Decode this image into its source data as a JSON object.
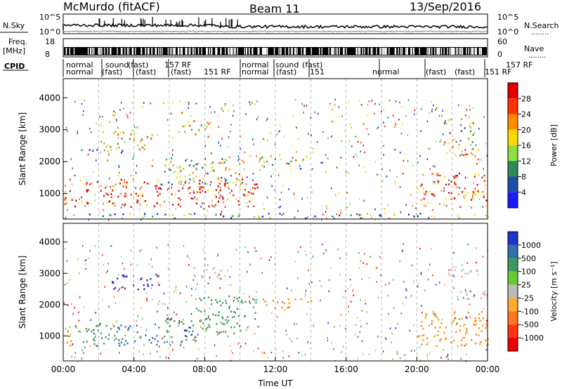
{
  "header": {
    "title": "McMurdo (fitACF)",
    "beam": "Beam 11",
    "date": "13/Sep/2016"
  },
  "params": {
    "nsky_label": "N.Sky",
    "nsearch_label": "N.Search",
    "freq_label": "Freq.",
    "freq_units": "[MHz]",
    "nave_label": "Nave",
    "cpid_label": "CPID",
    "log_top": "10^5",
    "log_bottom": "10^0",
    "freq_top": "18",
    "freq_bottom": "8",
    "nave_top": "60",
    "nave_bottom": "0",
    "dotted_marker": "........",
    "cpid_row1": [
      "normal",
      "sound",
      "(fast)",
      "157 RF",
      "normal",
      "sound",
      "(fast)",
      "157 RF"
    ],
    "cpid_row2": [
      "normal",
      "(fast)",
      "(fast)",
      "(fast)",
      "151 RF",
      "normal",
      "(fast)",
      "151",
      "normal",
      "(fast)",
      "(fast)",
      "151 RF"
    ]
  },
  "chart_data": [
    {
      "type": "heatmap",
      "name": "power",
      "ylabel": "Slant Range [km]",
      "ylim": [
        200,
        4600
      ],
      "yticks": [
        1000,
        2000,
        3000,
        4000
      ],
      "xlim": [
        0,
        24
      ],
      "colorbar": {
        "label": "Power [dB]",
        "ticks": [
          "4",
          "8",
          "12",
          "16",
          "20",
          "24",
          "28"
        ],
        "colors": [
          "#1a1aff",
          "#1f4fa8",
          "#2e8b57",
          "#8fdf3f",
          "#ffd700",
          "#ff8c00",
          "#ff3300",
          "#e00000"
        ]
      },
      "regions": [
        {
          "x": [
            0.0,
            11.0
          ],
          "y": [
            600,
            1500
          ],
          "level": 0.85
        },
        {
          "x": [
            2.2,
            5.0
          ],
          "y": [
            2400,
            3000
          ],
          "level": 0.6
        },
        {
          "x": [
            6.5,
            8.3
          ],
          "y": [
            2800,
            3300
          ],
          "level": 0.5
        },
        {
          "x": [
            5.5,
            10.5
          ],
          "y": [
            1300,
            2200
          ],
          "level": 0.45
        },
        {
          "x": [
            11.0,
            13.8
          ],
          "y": [
            1800,
            2200
          ],
          "level": 0.5
        },
        {
          "x": [
            0.5,
            4.0
          ],
          "y": [
            2300,
            2450
          ],
          "level": 0.2
        },
        {
          "x": [
            20.0,
            24.0
          ],
          "y": [
            600,
            1700
          ],
          "level": 0.8
        },
        {
          "x": [
            21.5,
            23.5
          ],
          "y": [
            2200,
            2900
          ],
          "level": 0.55
        },
        {
          "x": [
            21.5,
            23.3
          ],
          "y": [
            2900,
            3400
          ],
          "level": 0.5
        },
        {
          "x": [
            0.0,
            24.0
          ],
          "y": [
            250,
            400
          ],
          "level": 0.3
        }
      ]
    },
    {
      "type": "heatmap",
      "name": "velocity",
      "ylabel": "Slant Range [km]",
      "xlabel": "Time UT",
      "ylim": [
        200,
        4600
      ],
      "yticks": [
        1000,
        2000,
        3000,
        4000
      ],
      "xlim": [
        0,
        24
      ],
      "xticks": [
        "00:00",
        "04:00",
        "08:00",
        "12:00",
        "16:00",
        "20:00",
        "00:00"
      ],
      "colorbar": {
        "label": "Velocity [m s^-1]",
        "ticks": [
          "1000",
          "500",
          "100",
          "25",
          "-25",
          "-100",
          "-500",
          "-1000"
        ],
        "colors": [
          "#2233cc",
          "#2f6fb0",
          "#3a9a5a",
          "#66cc33",
          "#bbbbbb",
          "#ffaa33",
          "#ff7722",
          "#ff3311",
          "#ee0000"
        ]
      },
      "regions": [
        {
          "x": [
            0.0,
            0.6
          ],
          "y": [
            700,
            1300
          ],
          "color": "#ff8c00"
        },
        {
          "x": [
            0.6,
            3.0
          ],
          "y": [
            700,
            1400
          ],
          "color": "#3a9a5a"
        },
        {
          "x": [
            3.0,
            5.5
          ],
          "y": [
            700,
            1400
          ],
          "color": "#2f6fb0"
        },
        {
          "x": [
            5.5,
            7.5
          ],
          "y": [
            700,
            1600
          ],
          "color": "#3a9a5a"
        },
        {
          "x": [
            6.8,
            7.3
          ],
          "y": [
            900,
            1400
          ],
          "color": "#2233cc"
        },
        {
          "x": [
            7.5,
            11.0
          ],
          "y": [
            1100,
            2300
          ],
          "color": "#3a9a5a"
        },
        {
          "x": [
            2.5,
            5.5
          ],
          "y": [
            2500,
            3000
          ],
          "color": "#2233cc"
        },
        {
          "x": [
            7.0,
            9.0
          ],
          "y": [
            2800,
            3300
          ],
          "color": "#bbbbbb"
        },
        {
          "x": [
            11.0,
            14.0
          ],
          "y": [
            1900,
            2200
          ],
          "color": "#ff8c00"
        },
        {
          "x": [
            20.0,
            24.0
          ],
          "y": [
            700,
            1800
          ],
          "color": "#ff8c00"
        },
        {
          "x": [
            21.5,
            24.0
          ],
          "y": [
            2200,
            2500
          ],
          "color": "#bbbbbb"
        },
        {
          "x": [
            21.8,
            23.5
          ],
          "y": [
            2800,
            3300
          ],
          "color": "#bbbbbb"
        }
      ]
    }
  ]
}
